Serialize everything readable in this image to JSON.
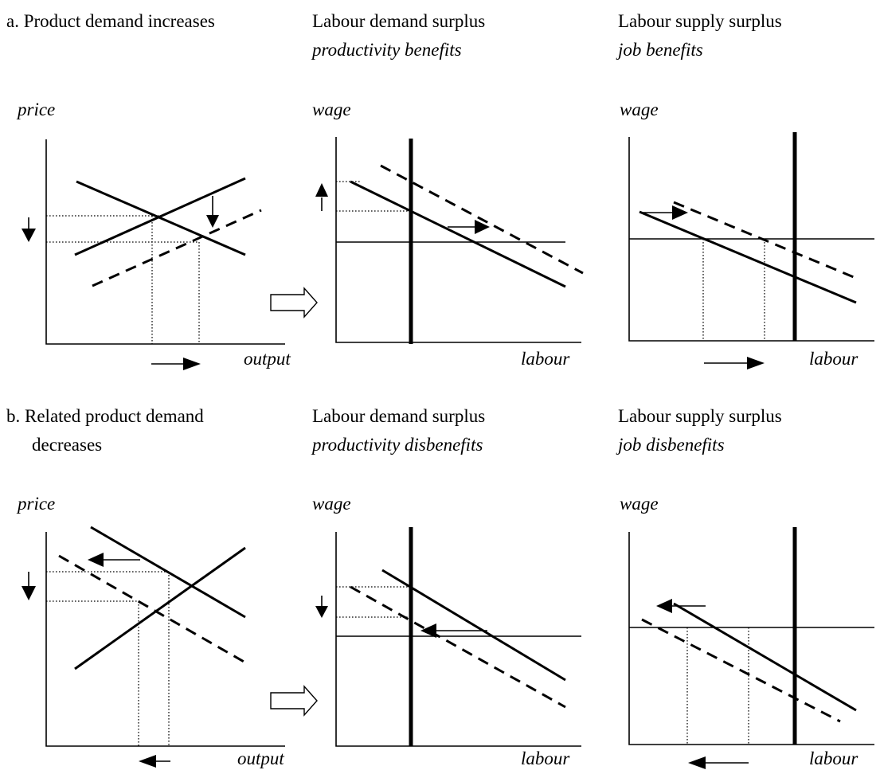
{
  "rows": [
    {
      "panel1_title_line1": "a. Product demand increases",
      "panel1_title_line2": "",
      "panel2_title_line1": "Labour demand surplus",
      "panel2_title_line2": "productivity benefits",
      "panel3_title_line1": "Labour supply surplus",
      "panel3_title_line2": "job benefits"
    },
    {
      "panel1_title_line1": "b. Related product demand",
      "panel1_title_line2": "decreases",
      "panel2_title_line1": "Labour demand surplus",
      "panel2_title_line2": "productivity disbenefits",
      "panel3_title_line1": "Labour supply surplus",
      "panel3_title_line2": "job disbenefits"
    }
  ],
  "axis_labels": {
    "price": "price",
    "output": "output",
    "wage": "wage",
    "labour": "labour"
  }
}
